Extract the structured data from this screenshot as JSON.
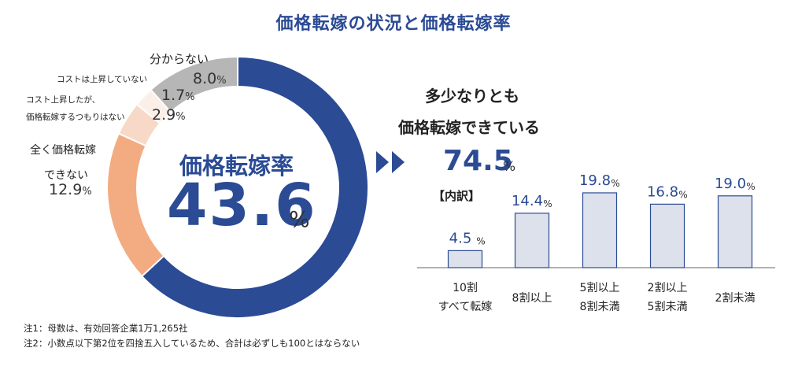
{
  "title": "価格転嫁の状況と価格転嫁率",
  "donut": {
    "center_label": "価格転嫁率",
    "center_value": "43.6",
    "center_unit": "%",
    "segments": [
      {
        "label": "価格転嫁率",
        "value": 43.6,
        "color": "#2b4b94"
      },
      {
        "label_lines": [
          "全く価格転嫁",
          "できない"
        ],
        "value": 12.9,
        "value_text": "12.9",
        "color": "#f3ac82"
      },
      {
        "label_lines": [
          "コスト上昇したが、",
          "価格転嫁するつもりはない"
        ],
        "value": 2.9,
        "value_text": "2.9",
        "color": "#f8d9c7"
      },
      {
        "label_lines": [
          "コストは上昇していない"
        ],
        "value": 1.7,
        "value_text": "1.7",
        "color": "#fbefe8"
      },
      {
        "label_lines": [
          "分からない"
        ],
        "value": 8.0,
        "value_text": "8.0",
        "color": "#b6b6b6"
      }
    ]
  },
  "right": {
    "head_line1": "多少なりとも",
    "head_line2": "価格転嫁できている",
    "value": "74.5",
    "unit": "%",
    "breakdown_label": "【内訳】"
  },
  "chart_data": {
    "type": "bar",
    "categories": [
      [
        "10割",
        "すべて転嫁"
      ],
      [
        "8割以上"
      ],
      [
        "5割以上",
        "8割未満"
      ],
      [
        "2割以上",
        "5割未満"
      ],
      [
        "2割未満"
      ]
    ],
    "values": [
      4.5,
      14.4,
      19.8,
      16.8,
      19.0
    ],
    "value_labels": [
      "4.5",
      "14.4",
      "19.8",
      "16.8",
      "19.0"
    ],
    "unit": "%",
    "bar_color": "#dde1ec",
    "bar_border": "#2b4b94"
  },
  "notes": [
    "注1：母数は、有効回答企業1万1,265社",
    "注2：小数点以下第2位を四捨五入しているため、合計は必ずしも100とはならない"
  ]
}
